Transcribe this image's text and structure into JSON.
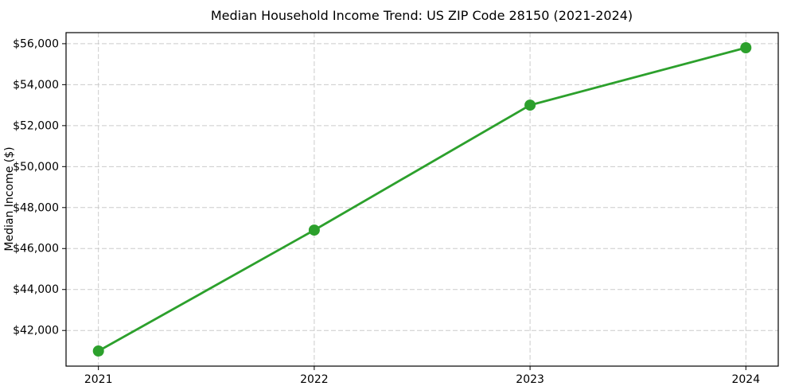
{
  "figure": {
    "background": "#ffffff"
  },
  "chart_data": {
    "type": "line",
    "title": "Median Household Income Trend: US ZIP Code 28150 (2021-2024)",
    "xlabel": "",
    "ylabel": "Median Income ($)",
    "x": [
      2021,
      2022,
      2023,
      2024
    ],
    "series": [
      {
        "name": "median-household-income",
        "values": [
          41000,
          46900,
          53000,
          55800
        ]
      }
    ],
    "x_ticks": [
      {
        "value": 2021,
        "label": "2021"
      },
      {
        "value": 2022,
        "label": "2022"
      },
      {
        "value": 2023,
        "label": "2023"
      },
      {
        "value": 2024,
        "label": "2024"
      }
    ],
    "y_ticks": [
      {
        "value": 42000,
        "label": "$42,000"
      },
      {
        "value": 44000,
        "label": "$44,000"
      },
      {
        "value": 46000,
        "label": "$46,000"
      },
      {
        "value": 48000,
        "label": "$48,000"
      },
      {
        "value": 50000,
        "label": "$50,000"
      },
      {
        "value": 52000,
        "label": "$52,000"
      },
      {
        "value": 54000,
        "label": "$54,000"
      },
      {
        "value": 56000,
        "label": "$56,000"
      }
    ],
    "xlim": [
      2020.85,
      2024.15
    ],
    "ylim": [
      40260,
      56540
    ],
    "grid": "dashed",
    "legend": "none",
    "colors": {
      "line": "#2ca02c",
      "marker": "#2ca02c",
      "grid": "#cccccc",
      "axis": "#000000",
      "text": "#000000"
    }
  }
}
